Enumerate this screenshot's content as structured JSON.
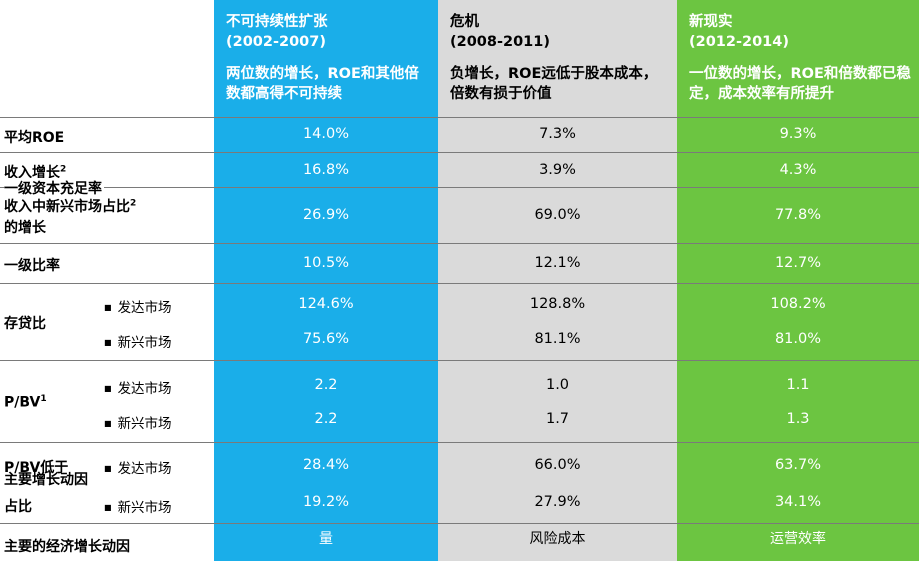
{
  "colors": {
    "col1": "#1aaee9",
    "col2": "#dadada",
    "col3": "#6cc541",
    "divider": "#7a7a7a"
  },
  "headers": [
    {
      "title": "不可持续性扩张",
      "years": "(2002-2007)",
      "desc": "两位数的增长，ROE和其他倍数都高得不可持续"
    },
    {
      "title": "危机",
      "years": "(2008-2011)",
      "desc": "负增长，ROE远低于股本成本，倍数有损于价值"
    },
    {
      "title": "新现实",
      "years": "(2012-2014)",
      "desc": "一位数的增长，ROE和倍数都已稳定，成本效率有所提升"
    }
  ],
  "labels": {
    "roe": "平均ROE",
    "revenue_growth": "收入增长",
    "revenue_growth_sup": "2",
    "tier1_overlap": "一级资本充足率",
    "em_share_line1": "收入中新兴市场占比",
    "em_share_sup": "2",
    "em_share_line2": "的增长",
    "tier1": "一级比率",
    "ldr": "存贷比",
    "pbv": "P/BV",
    "pbv_sup": "1",
    "pbv_below_line1": "P/BV低于",
    "pbv_below_line1_overlay": "主要增长动因",
    "pbv_below_line2": "占比",
    "drivers": "主要的经济增长动因"
  },
  "sub_labels": {
    "developed": "发达市场",
    "emerging": "新兴市场",
    "bullet": "■"
  },
  "rows": {
    "roe": [
      "14.0%",
      "7.3%",
      "9.3%"
    ],
    "revenue_growth": [
      "16.8%",
      "3.9%",
      "4.3%"
    ],
    "em_share": [
      "26.9%",
      "69.0%",
      "77.8%"
    ],
    "tier1": [
      "10.5%",
      "12.1%",
      "12.7%"
    ],
    "ldr_developed": [
      "124.6%",
      "128.8%",
      "108.2%"
    ],
    "ldr_emerging": [
      "75.6%",
      "81.1%",
      "81.0%"
    ],
    "pbv_developed": [
      "2.2",
      "1.0",
      "1.1"
    ],
    "pbv_emerging": [
      "2.2",
      "1.7",
      "1.3"
    ],
    "pbv_below_developed": [
      "28.4%",
      "66.0%",
      "63.7%"
    ],
    "pbv_below_emerging": [
      "19.2%",
      "27.9%",
      "34.1%"
    ],
    "drivers": [
      "量",
      "风险成本",
      "运营效率"
    ]
  }
}
